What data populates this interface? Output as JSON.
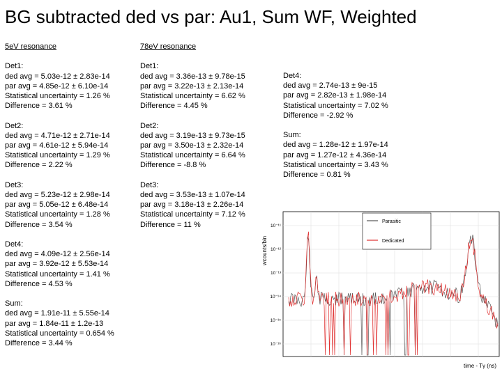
{
  "title": "BG subtracted ded vs par: Au1, Sum WF, Weighted",
  "col1": {
    "header": "5eV resonance",
    "blocks": [
      {
        "label": "Det1:",
        "ded": "ded avg = 5.03e-12 ± 2.83e-14",
        "par": "par avg = 4.85e-12 ± 6.10e-14",
        "stat": "Statistical uncertainty = 1.26 %",
        "diff": "Difference = 3.61 %"
      },
      {
        "label": "Det2:",
        "ded": "ded avg = 4.71e-12 ± 2.71e-14",
        "par": "par avg = 4.61e-12 ± 5.94e-14",
        "stat": "Statistical uncertainty = 1.29 %",
        "diff": "Difference = 2.22 %"
      },
      {
        "label": "Det3:",
        "ded": "ded avg = 5.23e-12 ± 2.98e-14",
        "par": "par avg = 5.05e-12 ± 6.48e-14",
        "stat": "Statistical uncertainty = 1.28 %",
        "diff": "Difference = 3.54 %"
      },
      {
        "label": "Det4:",
        "ded": "ded avg = 4.09e-12 ± 2.56e-14",
        "par": "par avg = 3.92e-12 ± 5.53e-14",
        "stat": "Statistical uncertainty = 1.41 %",
        "diff": "Difference = 4.53 %"
      },
      {
        "label": "Sum:",
        "ded": "ded avg = 1.91e-11 ± 5.55e-14",
        "par": "par avg = 1.84e-11 ± 1.2e-13",
        "stat": "Statistical uncertainty = 0.654 %",
        "diff": "Difference = 3.44 %"
      }
    ]
  },
  "col2": {
    "header": "78eV resonance",
    "blocks": [
      {
        "label": "Det1:",
        "ded": "ded avg = 3.36e-13 ± 9.78e-15",
        "par": "par avg = 3.22e-13 ± 2.13e-14",
        "stat": "Statistical uncertainty = 6.62 %",
        "diff": "Difference = 4.45 %"
      },
      {
        "label": "Det2:",
        "ded": "ded avg = 3.19e-13 ± 9.73e-15",
        "par": "par avg = 3.50e-13 ± 2.32e-14",
        "stat": "Statistical uncertainty = 6.64 %",
        "diff": "Difference = -8.8 %"
      },
      {
        "label": "Det3:",
        "ded": "ded avg = 3.53e-13 ± 1.07e-14",
        "par": "par avg = 3.18e-13 ± 2.26e-14",
        "stat": "Statistical uncertainty = 7.12 %",
        "diff": "Difference = 11 %"
      }
    ]
  },
  "col3": {
    "blocks": [
      {
        "label": "Det4:",
        "ded": "ded avg = 2.74e-13 ± 9e-15",
        "par": "par avg = 2.82e-13 ± 1.98e-14",
        "stat": "Statistical uncertainty = 7.02 %",
        "diff": "Difference = -2.92 %"
      },
      {
        "label": "Sum:",
        "ded": "ded avg = 1.28e-12 ± 1.97e-14",
        "par": "par avg = 1.27e-12 ± 4.36e-14",
        "stat": "Statistical uncertainty = 3.43 %",
        "diff": "Difference = 0.81 %"
      }
    ]
  },
  "plot": {
    "ylabel": "wcounts/bin",
    "xlabel": "time - Tγ (ns)",
    "yticks": [
      "10⁻¹¹",
      "10⁻¹²",
      "10⁻¹³",
      "10⁻¹⁴",
      "10⁻¹⁵",
      "10⁻¹⁶"
    ],
    "legend": [
      {
        "name": "Parasitic",
        "color": "#555555"
      },
      {
        "name": "Dedicated",
        "color": "#e03030"
      }
    ]
  }
}
